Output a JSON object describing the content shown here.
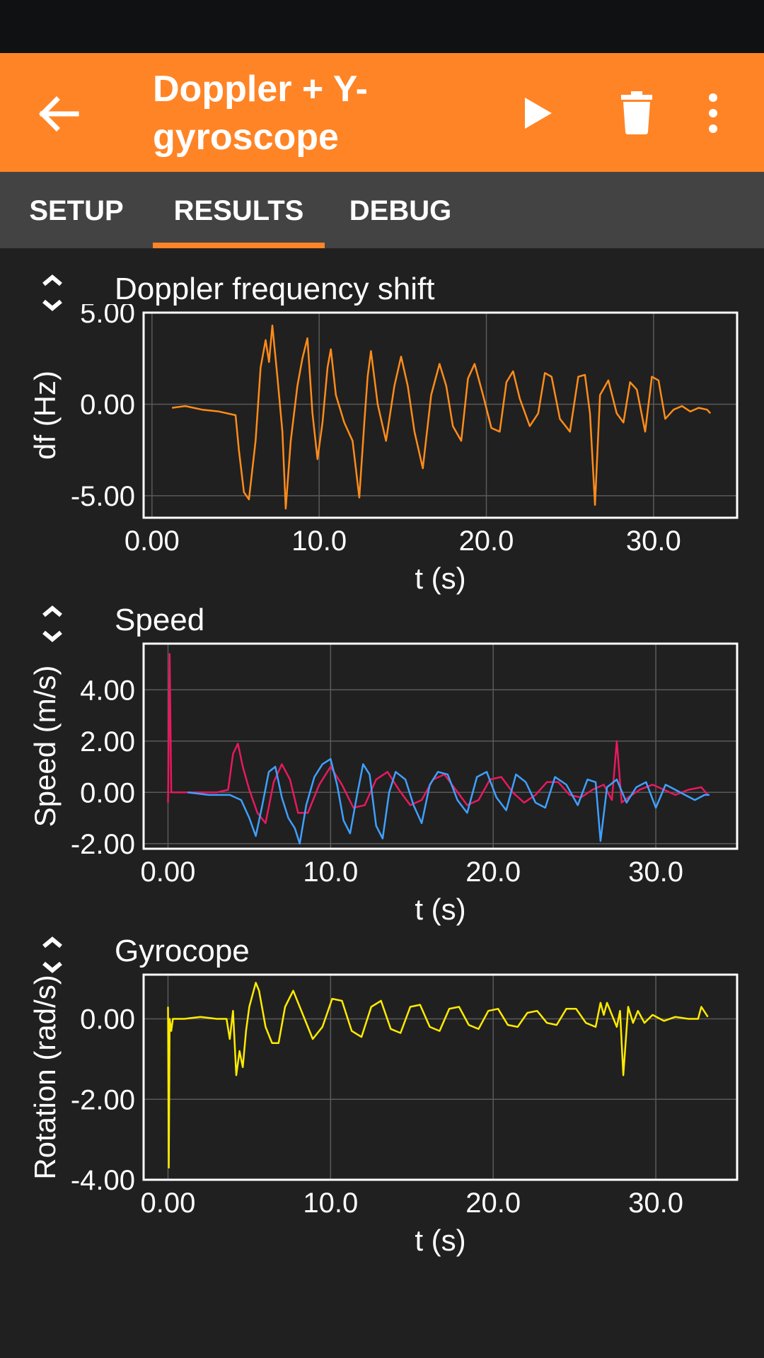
{
  "app_bar": {
    "title_line1": "Doppler + Y-",
    "title_line2": "gyroscope",
    "color": "#ff8426"
  },
  "tabs": [
    {
      "label": "SETUP",
      "active": false
    },
    {
      "label": "RESULTS",
      "active": true
    },
    {
      "label": "DEBUG",
      "active": false
    }
  ],
  "icons": {
    "back": "arrow-left-icon",
    "play": "play-icon",
    "delete": "trash-icon",
    "more": "more-vert-icon",
    "expand": "expand-icon"
  },
  "chart_data": [
    {
      "type": "line",
      "title": "Doppler frequency shift",
      "xlabel": "t (s)",
      "ylabel": "df (Hz)",
      "xlim": [
        -0.5,
        35
      ],
      "ylim": [
        -6.2,
        5.0
      ],
      "xticks": [
        0,
        10,
        20,
        30
      ],
      "xtick_labels": [
        "0.00",
        "10.0",
        "20.0",
        "30.0"
      ],
      "yticks": [
        -5,
        0,
        5
      ],
      "ytick_labels": [
        "-5.00",
        "0.00",
        "5.00"
      ],
      "series": [
        {
          "name": "df",
          "color": "#ff8c1a",
          "x": [
            1.2,
            2.0,
            3.0,
            4.0,
            5.0,
            5.2,
            5.5,
            5.8,
            6.2,
            6.5,
            6.8,
            7.0,
            7.2,
            7.5,
            7.8,
            8.0,
            8.3,
            8.7,
            9.0,
            9.3,
            9.6,
            9.9,
            10.2,
            10.5,
            10.7,
            11.0,
            11.5,
            12.0,
            12.4,
            12.7,
            12.9,
            13.1,
            13.5,
            14.0,
            14.5,
            14.9,
            15.3,
            15.7,
            16.2,
            16.7,
            17.2,
            17.6,
            18.0,
            18.5,
            18.9,
            19.3,
            19.8,
            20.3,
            20.8,
            21.2,
            21.6,
            22.0,
            22.6,
            23.1,
            23.5,
            23.9,
            24.4,
            25.0,
            25.5,
            25.9,
            26.2,
            26.5,
            26.8,
            27.3,
            27.8,
            28.2,
            28.6,
            29.0,
            29.5,
            29.9,
            30.3,
            30.7,
            31.2,
            31.7,
            32.2,
            32.7,
            33.2,
            33.4
          ],
          "values": [
            -0.2,
            -0.1,
            -0.3,
            -0.4,
            -0.6,
            -2.5,
            -4.8,
            -5.2,
            -2.0,
            2.0,
            3.5,
            2.3,
            4.3,
            1.5,
            -1.5,
            -5.7,
            -2.0,
            1.0,
            2.5,
            3.6,
            -0.5,
            -3.0,
            -1.0,
            2.0,
            3.0,
            0.5,
            -1.0,
            -2.0,
            -5.1,
            -1.0,
            1.5,
            2.9,
            0.0,
            -2.0,
            1.0,
            2.6,
            1.0,
            -1.5,
            -3.5,
            0.5,
            2.2,
            1.0,
            -1.2,
            -2.0,
            1.4,
            2.2,
            0.5,
            -1.3,
            -1.5,
            1.2,
            1.8,
            0.3,
            -1.2,
            -0.5,
            1.7,
            1.5,
            -0.8,
            -1.5,
            1.5,
            1.6,
            -0.5,
            -5.5,
            0.5,
            1.3,
            -0.5,
            -1.0,
            1.2,
            0.8,
            -1.5,
            1.5,
            1.3,
            -0.8,
            -0.3,
            -0.1,
            -0.4,
            -0.2,
            -0.3,
            -0.5
          ]
        }
      ]
    },
    {
      "type": "line",
      "title": "Speed",
      "xlabel": "t (s)",
      "ylabel": "Speed (m/s)",
      "xlim": [
        -1.5,
        35
      ],
      "ylim": [
        -2.2,
        5.8
      ],
      "xticks": [
        0,
        10,
        20,
        30
      ],
      "xtick_labels": [
        "0.00",
        "10.0",
        "20.0",
        "30.0"
      ],
      "yticks": [
        -2,
        0,
        2,
        4
      ],
      "ytick_labels": [
        "-2.00",
        "0.00",
        "2.00",
        "4.00"
      ],
      "series": [
        {
          "name": "speed-magenta",
          "color": "#e8195e",
          "x": [
            0.0,
            0.1,
            0.2,
            0.4,
            1.0,
            2.0,
            3.0,
            3.7,
            4.0,
            4.3,
            4.6,
            5.0,
            5.5,
            6.0,
            6.5,
            7.0,
            7.5,
            8.0,
            8.6,
            9.3,
            10.0,
            10.7,
            11.4,
            12.1,
            12.8,
            13.5,
            14.2,
            14.9,
            15.6,
            16.3,
            17.0,
            17.7,
            18.4,
            19.1,
            19.8,
            20.5,
            21.2,
            21.9,
            22.6,
            23.3,
            24.0,
            24.7,
            25.4,
            26.1,
            26.8,
            27.3,
            27.6,
            27.9,
            28.3,
            29.0,
            29.8,
            30.5,
            31.2,
            32.0,
            32.8,
            33.2
          ],
          "values": [
            -0.4,
            5.4,
            0.0,
            0.0,
            0.0,
            0.0,
            0.0,
            0.1,
            1.5,
            1.9,
            1.0,
            0.1,
            -0.8,
            -1.2,
            0.4,
            1.1,
            0.5,
            -0.8,
            -0.8,
            0.3,
            1.0,
            0.3,
            -0.6,
            -0.5,
            0.5,
            0.8,
            0.1,
            -0.5,
            -0.3,
            0.5,
            0.7,
            0.1,
            -0.5,
            -0.3,
            0.5,
            0.6,
            0.0,
            -0.4,
            -0.1,
            0.4,
            0.4,
            -0.1,
            -0.2,
            0.1,
            0.3,
            -0.3,
            2.0,
            -0.4,
            -0.2,
            0.1,
            0.3,
            0.1,
            -0.1,
            0.1,
            0.2,
            -0.1
          ]
        },
        {
          "name": "speed-blue",
          "color": "#3fa0ff",
          "x": [
            1.2,
            2.5,
            3.8,
            4.5,
            5.0,
            5.4,
            5.8,
            6.2,
            6.6,
            7.0,
            7.4,
            7.8,
            8.1,
            8.5,
            9.0,
            9.5,
            10.0,
            10.4,
            10.8,
            11.2,
            11.6,
            12.0,
            12.4,
            12.8,
            13.2,
            13.6,
            14.0,
            14.6,
            15.1,
            15.6,
            16.1,
            16.6,
            17.2,
            17.8,
            18.4,
            19.0,
            19.6,
            20.2,
            20.8,
            21.4,
            22.0,
            22.6,
            23.2,
            23.8,
            24.5,
            25.2,
            25.8,
            26.3,
            26.6,
            27.0,
            27.6,
            28.2,
            28.8,
            29.4,
            30.0,
            30.6,
            31.2,
            31.8,
            32.4,
            33.0,
            33.3
          ],
          "values": [
            0.0,
            -0.1,
            -0.1,
            -0.3,
            -1.0,
            -1.7,
            -0.5,
            0.8,
            1.0,
            -0.2,
            -1.0,
            -1.4,
            -2.0,
            -0.5,
            0.6,
            1.1,
            1.3,
            0.3,
            -1.1,
            -1.6,
            -0.2,
            1.1,
            0.7,
            -1.3,
            -1.8,
            0.0,
            0.8,
            0.5,
            -0.5,
            -1.2,
            0.3,
            0.8,
            0.7,
            -0.3,
            -0.8,
            0.6,
            0.8,
            -0.2,
            -0.7,
            0.7,
            0.4,
            -0.4,
            -0.6,
            0.6,
            0.3,
            -0.5,
            0.5,
            0.4,
            -1.9,
            0.2,
            0.5,
            -0.4,
            0.2,
            0.4,
            -0.6,
            0.3,
            0.1,
            -0.1,
            -0.3,
            -0.1,
            -0.1
          ]
        }
      ]
    },
    {
      "type": "line",
      "title": "Gyrocope",
      "xlabel": "t (s)",
      "ylabel": "Rotation (rad/s)",
      "xlim": [
        -1.5,
        35
      ],
      "ylim": [
        -4.0,
        1.1
      ],
      "xticks": [
        0,
        10,
        20,
        30
      ],
      "xtick_labels": [
        "0.00",
        "10.0",
        "20.0",
        "30.0"
      ],
      "yticks": [
        -4,
        -2,
        0
      ],
      "ytick_labels": [
        "-4.00",
        "-2.00",
        "0.00"
      ],
      "series": [
        {
          "name": "rotation",
          "color": "#ffeb00",
          "x": [
            0.0,
            0.05,
            0.1,
            0.2,
            0.3,
            1.0,
            2.0,
            3.0,
            3.6,
            3.8,
            4.0,
            4.2,
            4.4,
            4.6,
            4.8,
            5.0,
            5.2,
            5.4,
            5.6,
            6.0,
            6.4,
            6.8,
            7.2,
            7.7,
            8.3,
            8.9,
            9.5,
            10.1,
            10.7,
            11.3,
            11.9,
            12.5,
            13.1,
            13.7,
            14.3,
            14.9,
            15.5,
            16.1,
            16.7,
            17.3,
            17.9,
            18.5,
            19.1,
            19.7,
            20.3,
            20.9,
            21.5,
            22.1,
            22.7,
            23.3,
            23.9,
            24.5,
            25.1,
            25.7,
            26.3,
            26.6,
            26.8,
            27.0,
            27.3,
            27.6,
            27.8,
            28.0,
            28.3,
            28.6,
            28.9,
            29.3,
            29.8,
            30.5,
            31.2,
            32.0,
            32.6,
            32.8,
            33.2
          ],
          "values": [
            0.3,
            -3.7,
            0.0,
            -0.3,
            0.0,
            0.0,
            0.05,
            0.0,
            0.0,
            -0.5,
            0.2,
            -1.4,
            -0.8,
            -1.2,
            -0.3,
            0.3,
            0.6,
            0.9,
            0.7,
            -0.2,
            -0.6,
            -0.6,
            0.3,
            0.7,
            0.1,
            -0.5,
            -0.2,
            0.5,
            0.45,
            -0.3,
            -0.45,
            0.3,
            0.45,
            -0.25,
            -0.35,
            0.3,
            0.35,
            -0.2,
            -0.3,
            0.25,
            0.3,
            -0.15,
            -0.25,
            0.2,
            0.25,
            -0.15,
            -0.2,
            0.15,
            0.2,
            -0.1,
            -0.15,
            0.25,
            0.25,
            -0.1,
            -0.2,
            0.4,
            0.1,
            0.4,
            0.1,
            -0.2,
            0.2,
            -1.4,
            0.3,
            -0.1,
            0.2,
            -0.1,
            0.1,
            -0.05,
            0.05,
            0.0,
            0.0,
            0.3,
            0.05
          ]
        }
      ]
    }
  ]
}
